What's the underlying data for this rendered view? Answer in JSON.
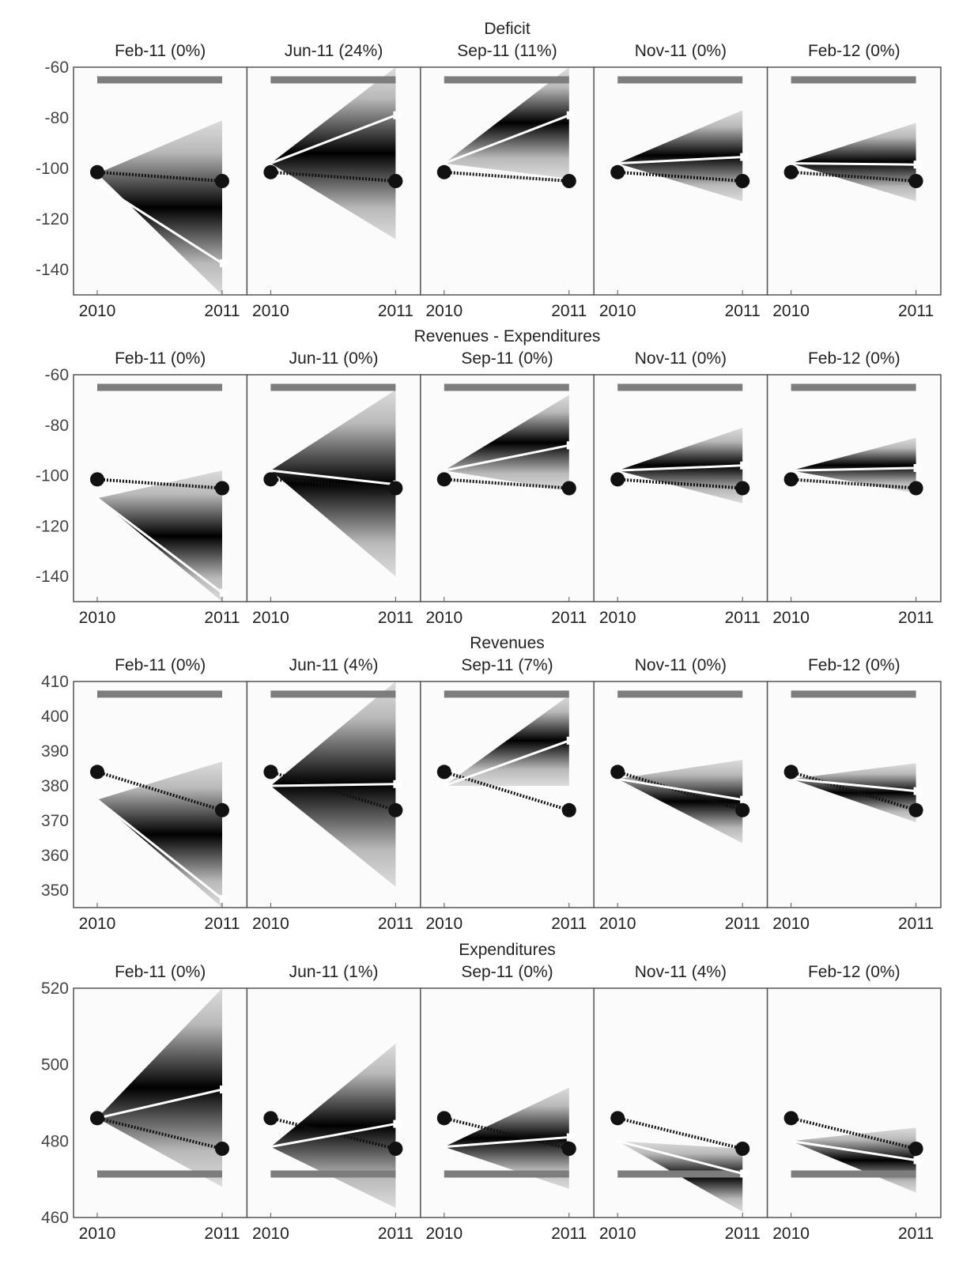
{
  "chart_data": [
    {
      "type": "line",
      "title": "Deficit",
      "x": [
        "2010",
        "2011"
      ],
      "ylim": [
        -150,
        -60
      ],
      "yticks": [
        -60,
        -80,
        -100,
        -120,
        -140
      ],
      "actual": [
        -101.5,
        -105
      ],
      "panels": [
        {
          "label": "Feb-11 (0%)",
          "forecast": [
            -106,
            -137.5
          ],
          "fan_end": [
            -150,
            -81
          ],
          "fan_start": -102
        },
        {
          "label": "Jun-11 (24%)",
          "forecast": [
            -98,
            -79
          ],
          "fan_end": [
            -128,
            -60
          ],
          "fan_start": -98
        },
        {
          "label": "Sep-11 (11%)",
          "forecast": [
            -98,
            -79
          ],
          "fan_end": [
            -104,
            -60
          ],
          "fan_start": -98
        },
        {
          "label": "Nov-11 (0%)",
          "forecast": [
            -98,
            -95.5
          ],
          "fan_end": [
            -113,
            -77
          ],
          "fan_start": -98
        },
        {
          "label": "Feb-12 (0%)",
          "forecast": [
            -98,
            -98.5
          ],
          "fan_end": [
            -113,
            -82
          ],
          "fan_start": -98
        }
      ]
    },
    {
      "type": "line",
      "title": "Revenues - Expenditures",
      "x": [
        "2010",
        "2011"
      ],
      "ylim": [
        -150,
        -60
      ],
      "yticks": [
        -60,
        -80,
        -100,
        -120,
        -140
      ],
      "actual": [
        -101.5,
        -105
      ],
      "panels": [
        {
          "label": "Feb-11 (0%)",
          "forecast": [
            -109,
            -146.5
          ],
          "fan_end": [
            -150,
            -98
          ],
          "fan_start": -109
        },
        {
          "label": "Jun-11 (0%)",
          "forecast": [
            -98,
            -103.5
          ],
          "fan_end": [
            -140,
            -66
          ],
          "fan_start": -98
        },
        {
          "label": "Sep-11 (0%)",
          "forecast": [
            -98,
            -88
          ],
          "fan_end": [
            -106,
            -68
          ],
          "fan_start": -98
        },
        {
          "label": "Nov-11 (0%)",
          "forecast": [
            -98,
            -96
          ],
          "fan_end": [
            -111,
            -81
          ],
          "fan_start": -98
        },
        {
          "label": "Feb-12 (0%)",
          "forecast": [
            -98,
            -97
          ],
          "fan_end": [
            -107,
            -85
          ],
          "fan_start": -98
        }
      ]
    },
    {
      "type": "line",
      "title": "Revenues",
      "x": [
        "2010",
        "2011"
      ],
      "ylim": [
        345,
        410
      ],
      "yticks": [
        410,
        400,
        390,
        380,
        370,
        360,
        350
      ],
      "actual": [
        384,
        373
      ],
      "panels": [
        {
          "label": "Feb-11 (0%)",
          "forecast": [
            376,
            347.5
          ],
          "fan_end": [
            345,
            387
          ],
          "fan_start": 376
        },
        {
          "label": "Jun-11 (4%)",
          "forecast": [
            380,
            380.5
          ],
          "fan_end": [
            351,
            410
          ],
          "fan_start": 380
        },
        {
          "label": "Sep-11 (7%)",
          "forecast": [
            380,
            393
          ],
          "fan_end": [
            380,
            406
          ],
          "fan_start": 380
        },
        {
          "label": "Nov-11 (0%)",
          "forecast": [
            382,
            376
          ],
          "fan_end": [
            363.5,
            387.5
          ],
          "fan_start": 382
        },
        {
          "label": "Feb-12 (0%)",
          "forecast": [
            382,
            378.5
          ],
          "fan_end": [
            369.5,
            386.5
          ],
          "fan_start": 382
        }
      ]
    },
    {
      "type": "line",
      "title": "Expenditures",
      "x": [
        "2010",
        "2011"
      ],
      "ylim": [
        460,
        520
      ],
      "yticks": [
        520,
        500,
        480,
        460
      ],
      "actual": [
        486,
        478
      ],
      "panels": [
        {
          "label": "Feb-11 (0%)",
          "forecast": [
            486,
            493.5
          ],
          "fan_end": [
            468,
            520
          ],
          "fan_start": 486
        },
        {
          "label": "Jun-11 (1%)",
          "forecast": [
            478.5,
            484.5
          ],
          "fan_end": [
            462.5,
            505.5
          ],
          "fan_start": 478.5
        },
        {
          "label": "Sep-11 (0%)",
          "forecast": [
            478.5,
            481
          ],
          "fan_end": [
            467.5,
            494
          ],
          "fan_start": 478.5
        },
        {
          "label": "Nov-11 (4%)",
          "forecast": [
            480,
            471.5
          ],
          "fan_end": [
            461.5,
            478
          ],
          "fan_start": 480
        },
        {
          "label": "Feb-12 (0%)",
          "forecast": [
            480,
            475
          ],
          "fan_end": [
            466.5,
            483.5
          ],
          "fan_start": 480
        }
      ]
    }
  ],
  "colors": {
    "background": "#fbfbfb",
    "axis": "#555555",
    "target_bar": "#7d7d7d",
    "forecast_line": "#ffffff",
    "actual_marker": "#111111",
    "fan_dark": "#000000",
    "fan_light": "#dcdcdc"
  }
}
